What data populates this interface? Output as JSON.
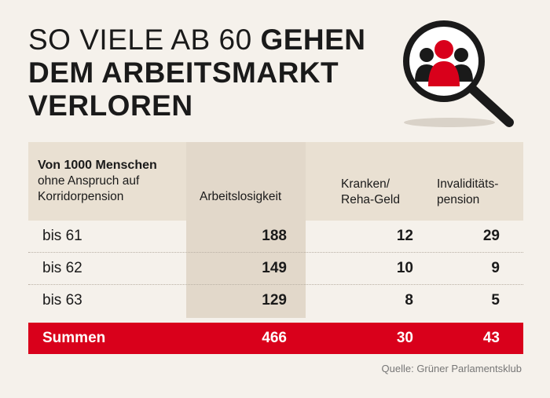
{
  "title": {
    "line1_light": "SO VIELE AB 60",
    "line1_bold": "GEHEN",
    "line2": "DEM ARBEITSMARKT",
    "line3": "VERLOREN"
  },
  "icon": "magnifier-people-icon",
  "colors": {
    "accent": "#d9001b",
    "background": "#f5f1eb",
    "header_bg": "#e9e0d2",
    "highlight_col": "#e2d8ca"
  },
  "table": {
    "corner": {
      "bold": "Von 1000 Menschen",
      "sub1": "ohne Anspruch auf",
      "sub2": "Korridorpension"
    },
    "headers": [
      {
        "line1": "Arbeitslosigkeit",
        "line2": ""
      },
      {
        "line1": "Kranken/",
        "line2": "Reha-Geld"
      },
      {
        "line1": "Invaliditäts-",
        "line2": "pension"
      }
    ],
    "rows": [
      {
        "label": "bis 61",
        "values": [
          "188",
          "12",
          "29"
        ]
      },
      {
        "label": "bis 62",
        "values": [
          "149",
          "10",
          "9"
        ]
      },
      {
        "label": "bis 63",
        "values": [
          "129",
          "8",
          "5"
        ]
      }
    ],
    "sum": {
      "label": "Summen",
      "values": [
        "466",
        "30",
        "43"
      ]
    }
  },
  "source": "Quelle: Grüner Parlamentsklub",
  "chart_data": {
    "type": "table",
    "title": "SO VIELE AB 60 GEHEN DEM ARBEITSMARKT VERLOREN",
    "columns": [
      "Von 1000 Menschen ohne Anspruch auf Korridorpension",
      "Arbeitslosigkeit",
      "Kranken/Reha-Geld",
      "Invaliditätspension"
    ],
    "rows": [
      [
        "bis 61",
        188,
        12,
        29
      ],
      [
        "bis 62",
        149,
        10,
        9
      ],
      [
        "bis 63",
        129,
        8,
        5
      ],
      [
        "Summen",
        466,
        30,
        43
      ]
    ]
  }
}
